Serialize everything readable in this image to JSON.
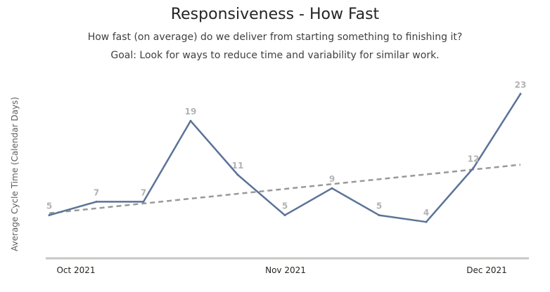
{
  "chart_data": {
    "type": "line",
    "title": "Responsiveness - How Fast",
    "subtitle_lines": [
      "How fast (on average) do we deliver from starting something to finishing it?",
      "Goal: Look for ways to reduce time and variability for similar work."
    ],
    "xlabel": "",
    "ylabel": "Average Cycle Time (Calendar Days)",
    "x_tick_labels": [
      "Oct 2021",
      "Nov 2021",
      "Dec 2021"
    ],
    "ylim": [
      0,
      26
    ],
    "grid": false,
    "series": [
      {
        "values": [
          5,
          7,
          7,
          19,
          11,
          5,
          9,
          5,
          4,
          12,
          23
        ],
        "data_labels": [
          "5",
          "7",
          "7",
          "19",
          "11",
          "5",
          "9",
          "5",
          "4",
          "12",
          "23"
        ],
        "color": "#5b7398"
      }
    ],
    "trend_line": {
      "start": 5.3,
      "end": 12.5,
      "color": "#999999",
      "style": "dashed"
    }
  }
}
